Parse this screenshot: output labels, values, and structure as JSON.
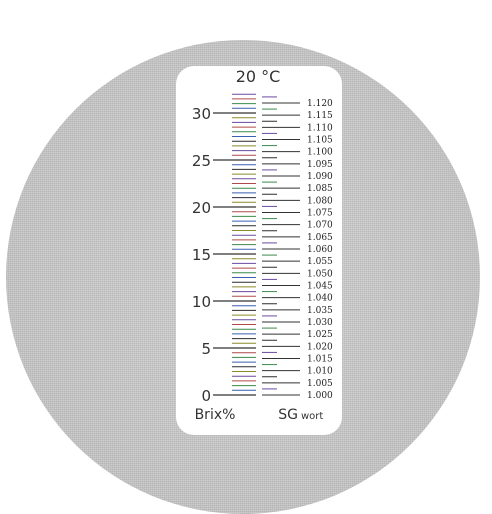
{
  "header": {
    "temperature": "20 °C"
  },
  "brix_scale": {
    "labels": [
      "0",
      "5",
      "10",
      "15",
      "20",
      "25",
      "30"
    ],
    "label": "Brix%"
  },
  "sg_scale": {
    "labels": [
      "1.000",
      "1.005",
      "1.010",
      "1.015",
      "1.020",
      "1.025",
      "1.030",
      "1.035",
      "1.040",
      "1.045",
      "1.050",
      "1.055",
      "1.060",
      "1.065",
      "1.070",
      "1.075",
      "1.080",
      "1.085",
      "1.090",
      "1.095",
      "1.100",
      "1.105",
      "1.110",
      "1.115",
      "1.120"
    ],
    "label": "SG",
    "label_sub": "wort"
  },
  "colors": {
    "ink": "#333333",
    "tick_colors": [
      "#2c2c2c",
      "#3a5fb0",
      "#3b8a4a",
      "#b04a4a",
      "#6a4aa0",
      "#8a8a2c"
    ]
  }
}
